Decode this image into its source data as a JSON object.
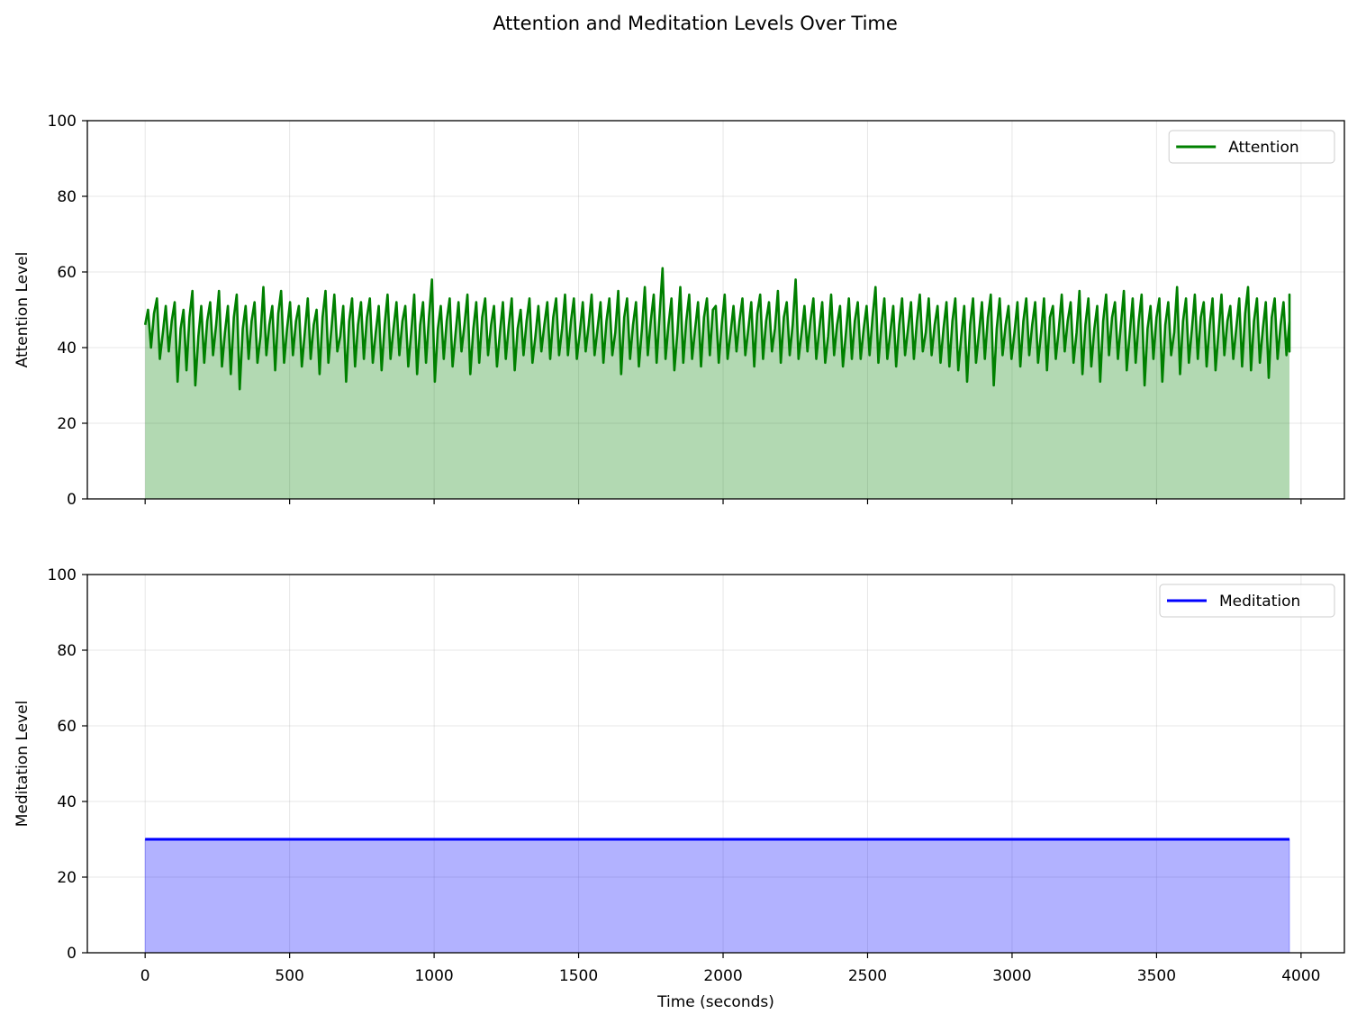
{
  "figure": {
    "title": "Attention and Meditation Levels Over Time"
  },
  "chart_data": [
    {
      "type": "area",
      "ylabel": "Attention Level",
      "xlabel": "",
      "xlim": [
        -200,
        4150
      ],
      "ylim": [
        0,
        100
      ],
      "xticks": [
        0,
        500,
        1000,
        1500,
        2000,
        2500,
        3000,
        3500,
        4000
      ],
      "yticks": [
        0,
        20,
        40,
        60,
        80,
        100
      ],
      "xtick_labels_visible": false,
      "grid": true,
      "legend_position": "top-right",
      "series": [
        {
          "name": "Attention",
          "color": "#008000",
          "fill_color": "#008000",
          "x_start": 0,
          "x_end": 3960,
          "values": [
            46,
            49,
            44,
            47,
            45,
            48,
            43,
            47,
            46,
            44,
            48,
            45,
            47,
            43,
            46,
            49,
            45,
            47,
            44,
            46,
            48,
            45,
            43,
            47,
            46,
            48,
            44,
            46,
            45,
            47,
            44,
            46,
            48,
            45,
            47,
            44,
            46,
            45,
            48,
            46,
            44,
            46,
            45,
            47,
            43,
            46,
            48,
            45,
            47,
            44,
            46,
            45,
            47,
            44,
            48,
            46,
            45,
            47,
            49,
            46,
            44,
            47,
            45,
            48,
            50,
            46,
            44,
            47,
            45,
            49,
            47,
            45,
            48,
            46,
            44,
            47,
            45,
            43,
            46,
            44,
            47,
            45,
            48,
            46,
            44,
            46,
            45,
            47,
            44,
            46,
            45,
            47,
            43,
            46,
            44,
            48,
            45,
            46,
            44,
            47,
            46,
            44,
            48,
            45,
            47,
            44,
            46,
            45,
            47,
            48,
            46,
            44,
            47,
            45,
            48,
            46,
            44,
            47,
            45,
            48,
            46,
            44,
            47,
            45,
            49,
            47,
            45,
            48,
            46,
            47
          ],
          "upper": [
            50,
            53,
            51,
            52,
            50,
            55,
            51,
            52,
            55,
            51,
            54,
            51,
            52,
            56,
            51,
            55,
            52,
            51,
            53,
            50,
            55,
            54,
            51,
            53,
            52,
            53,
            51,
            54,
            52,
            51,
            54,
            52,
            58,
            51,
            53,
            52,
            54,
            52,
            53,
            51,
            52,
            53,
            50,
            53,
            51,
            52,
            53,
            54,
            53,
            52,
            54,
            52,
            53,
            55,
            53,
            52,
            56,
            54,
            61,
            53,
            56,
            54,
            52,
            53,
            51,
            54,
            51,
            53,
            52,
            54,
            52,
            55,
            52,
            58,
            51,
            53,
            52,
            54,
            51,
            53,
            52,
            51,
            56,
            53,
            51,
            53,
            52,
            54,
            53,
            51,
            52,
            53,
            51,
            53,
            52,
            54,
            53,
            51,
            52,
            53,
            52,
            53,
            51,
            54,
            52,
            55,
            53,
            51,
            54,
            52,
            55,
            53,
            54,
            51,
            53,
            52,
            56,
            53,
            54,
            52,
            53,
            54,
            51,
            53,
            56,
            53,
            52,
            53,
            52,
            54
          ],
          "lower": [
            40,
            37,
            39,
            31,
            34,
            30,
            36,
            38,
            35,
            33,
            29,
            37,
            36,
            38,
            34,
            36,
            38,
            35,
            37,
            33,
            36,
            39,
            31,
            35,
            37,
            36,
            34,
            37,
            38,
            35,
            33,
            36,
            31,
            37,
            35,
            39,
            33,
            36,
            38,
            35,
            37,
            34,
            38,
            36,
            39,
            37,
            38,
            38,
            37,
            39,
            38,
            36,
            38,
            33,
            37,
            35,
            38,
            36,
            37,
            34,
            36,
            37,
            35,
            38,
            36,
            37,
            39,
            38,
            35,
            37,
            39,
            36,
            38,
            37,
            39,
            37,
            36,
            38,
            35,
            37,
            37,
            38,
            36,
            37,
            35,
            38,
            37,
            39,
            38,
            36,
            35,
            34,
            31,
            36,
            37,
            30,
            38,
            37,
            35,
            38,
            36,
            34,
            37,
            39,
            36,
            33,
            35,
            31,
            38,
            37,
            34,
            36,
            30,
            37,
            31,
            38,
            33,
            36,
            37,
            35,
            34,
            38,
            37,
            35,
            34,
            36,
            32,
            37,
            38,
            39
          ]
        }
      ]
    },
    {
      "type": "area",
      "ylabel": "Meditation Level",
      "xlabel": "Time (seconds)",
      "xlim": [
        -200,
        4150
      ],
      "ylim": [
        0,
        100
      ],
      "xticks": [
        0,
        500,
        1000,
        1500,
        2000,
        2500,
        3000,
        3500,
        4000
      ],
      "yticks": [
        0,
        20,
        40,
        60,
        80,
        100
      ],
      "xtick_labels_visible": true,
      "grid": true,
      "legend_position": "top-right",
      "series": [
        {
          "name": "Meditation",
          "color": "#0000ff",
          "fill_color": "#0000ff",
          "x_start": 0,
          "x_end": 3960,
          "values": [
            30,
            30
          ]
        }
      ]
    }
  ]
}
